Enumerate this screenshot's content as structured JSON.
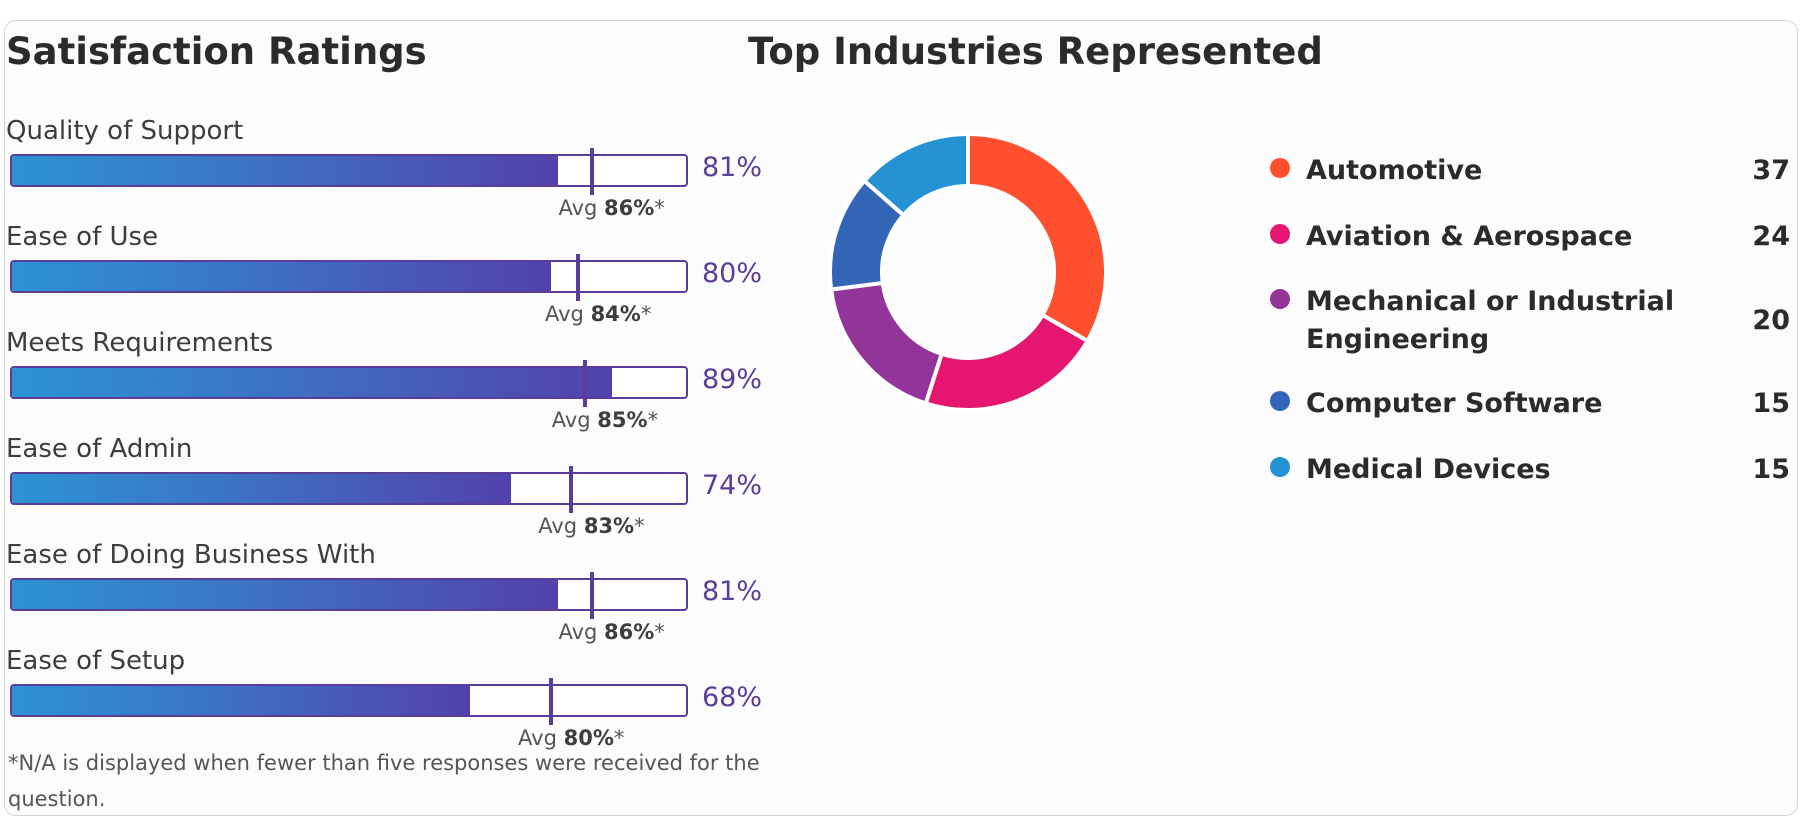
{
  "chart_data": [
    {
      "type": "bar",
      "title": "Satisfaction Ratings",
      "categories": [
        "Quality of Support",
        "Ease of Use",
        "Meets Requirements",
        "Ease of Admin",
        "Ease of Doing Business With",
        "Ease of Setup"
      ],
      "values": [
        81,
        80,
        89,
        74,
        81,
        68
      ],
      "value_labels": [
        "81%",
        "80%",
        "89%",
        "74%",
        "81%",
        "68%"
      ],
      "averages": [
        86,
        84,
        85,
        83,
        86,
        80
      ],
      "avg_prefix": "Avg",
      "avg_labels": [
        "86%",
        "84%",
        "85%",
        "83%",
        "86%",
        "80%"
      ],
      "avg_suffix": "*",
      "xlim": [
        0,
        100
      ],
      "footnote": "*N/A is displayed when fewer than five responses were received for the question.",
      "colors": {
        "fill_start": "#2b93d3",
        "fill_end": "#5241ad",
        "accent": "#5a3d99"
      }
    },
    {
      "type": "pie",
      "title": "Top Industries Represented",
      "categories": [
        "Automotive",
        "Aviation & Aerospace",
        "Mechanical or Industrial Engineering",
        "Computer Software",
        "Medical Devices"
      ],
      "values": [
        37,
        24,
        20,
        15,
        15
      ],
      "colors": [
        "#ff4f2e",
        "#e5166f",
        "#923499",
        "#3466b7",
        "#2592d4"
      ],
      "legend": "right"
    }
  ]
}
